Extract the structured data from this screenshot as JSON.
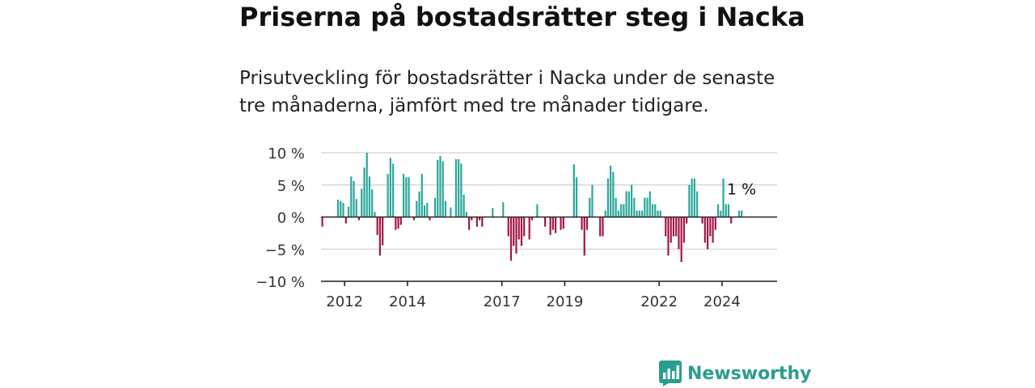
{
  "title": "Priserna på bostadsrätter steg i Nacka",
  "subtitle": "Prisutveckling för bostadsrätter i Nacka under de senaste tre månaderna, jämfört med tre månader tidigare.",
  "brand": {
    "name": "Newsworthy",
    "icon": "bar-chart-speech-bubble-icon",
    "color": "#2a9d8f"
  },
  "colors": {
    "positive": "#2aa79b",
    "negative": "#a51548",
    "grid": "#d9d9d9",
    "axis": "#222222"
  },
  "chart_data": {
    "type": "bar",
    "xlabel": "",
    "ylabel": "",
    "ylim": [
      -10,
      10
    ],
    "y_ticks": [
      {
        "value": 10,
        "label": "10 %"
      },
      {
        "value": 5,
        "label": "5 %"
      },
      {
        "value": 0,
        "label": "0 %"
      },
      {
        "value": -5,
        "label": "−5 %"
      },
      {
        "value": -10,
        "label": "−10 %"
      }
    ],
    "x_ticks": [
      {
        "value": 2012,
        "label": "2012"
      },
      {
        "value": 2014,
        "label": "2014"
      },
      {
        "value": 2017,
        "label": "2017"
      },
      {
        "value": 2019,
        "label": "2019"
      },
      {
        "value": 2022,
        "label": "2022"
      },
      {
        "value": 2024,
        "label": "2024"
      }
    ],
    "x_start": 2011.25,
    "x_end": 2025.75,
    "period_months": 1,
    "annotation": {
      "text": "1 %",
      "value": 1
    },
    "values": [
      -1.5,
      0,
      0,
      0,
      0,
      0,
      2.7,
      2.5,
      2.2,
      -1,
      1.6,
      6.3,
      5.6,
      2.8,
      -0.5,
      4.4,
      7.7,
      10,
      6.3,
      4.3,
      0.8,
      -2.8,
      -6,
      -4.4,
      0,
      6.7,
      9.2,
      8.3,
      -2,
      -1.8,
      -1.2,
      6.7,
      6.2,
      6.2,
      0,
      -0.5,
      2.5,
      4,
      6.7,
      1.8,
      2.2,
      -0.5,
      0,
      3,
      8.9,
      9.5,
      8.7,
      2.5,
      0,
      1.5,
      0,
      9,
      9,
      8.3,
      3.5,
      0.8,
      -2,
      -0.5,
      0,
      -1.5,
      -0.5,
      -1.5,
      0,
      0,
      0,
      1.4,
      0,
      0,
      0,
      2.3,
      0,
      -3,
      -6.8,
      -4.5,
      -5.7,
      -3.5,
      -4.5,
      -3,
      0,
      -3.5,
      -0.5,
      0,
      2,
      0,
      0,
      -1.5,
      0,
      -2.8,
      -2,
      -2.5,
      0,
      -2,
      -1.8,
      0,
      0,
      0,
      8.2,
      6.2,
      0,
      -2,
      -6,
      -2,
      3,
      5,
      0,
      0,
      -3,
      -3,
      1,
      6,
      8,
      7,
      3,
      1,
      2,
      2,
      4,
      4,
      5,
      3,
      1,
      1,
      1,
      3,
      3,
      4,
      2,
      2,
      1,
      1,
      0,
      -3,
      -6,
      -4,
      -3,
      -3,
      -5,
      -7,
      -4,
      -1,
      5,
      6,
      6,
      4,
      0,
      -1,
      -4,
      -5,
      -3,
      -4,
      -2,
      2,
      1,
      6,
      2,
      2,
      -1,
      0,
      0,
      1,
      1
    ]
  }
}
